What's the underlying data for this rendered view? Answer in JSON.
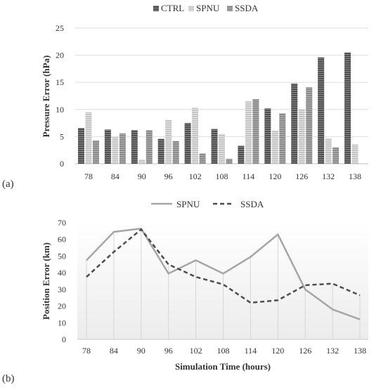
{
  "panel_labels": {
    "a": "(a)",
    "b": "(b)"
  },
  "chart_data": [
    {
      "type": "bar",
      "title": "",
      "xlabel": "",
      "ylabel": "Pressure Error (hPa)",
      "ylim": [
        0,
        25
      ],
      "yticks": [
        0,
        5,
        10,
        15,
        20,
        25
      ],
      "grid": true,
      "legend_position": "top-center",
      "categories": [
        "78",
        "84",
        "90",
        "96",
        "102",
        "108",
        "114",
        "120",
        "126",
        "132",
        "138"
      ],
      "series": [
        {
          "name": "CTRL",
          "color": "#5c5c5c",
          "pattern": "dense-stripes",
          "values": [
            6.6,
            6.3,
            6.2,
            4.6,
            7.5,
            6.4,
            3.3,
            10.2,
            14.8,
            19.6,
            20.5
          ]
        },
        {
          "name": "SPNU",
          "color": "#bdbdbd",
          "pattern": "light-stripes",
          "values": [
            9.5,
            4.9,
            0.8,
            8.1,
            10.3,
            5.5,
            11.5,
            6.1,
            10.1,
            4.7,
            3.6
          ]
        },
        {
          "name": "SSDA",
          "color": "#8a8a8a",
          "pattern": "medium-stripes",
          "values": [
            4.3,
            5.6,
            6.2,
            4.2,
            1.9,
            0.9,
            11.9,
            9.3,
            14.1,
            3.0,
            null
          ]
        }
      ]
    },
    {
      "type": "line",
      "title": "",
      "xlabel": "Simulation Time (hours)",
      "ylabel": "Position Error (km)",
      "ylim": [
        0,
        70
      ],
      "yticks": [
        0,
        10,
        20,
        30,
        40,
        50,
        60,
        70
      ],
      "grid": true,
      "legend_position": "top-center",
      "x": [
        "78",
        "84",
        "90",
        "96",
        "102",
        "108",
        "114",
        "120",
        "126",
        "132",
        "138"
      ],
      "series": [
        {
          "name": "SPNU",
          "color": "#a6a6a6",
          "dash": "solid",
          "values": [
            47.5,
            64.5,
            66.5,
            39.5,
            47.5,
            39.5,
            49.5,
            63.0,
            30.0,
            18.0,
            12.0
          ]
        },
        {
          "name": "SSDA",
          "color": "#4d4d4d",
          "dash": "dashed",
          "values": [
            37.5,
            52.5,
            66.0,
            45.0,
            37.5,
            33.0,
            22.0,
            23.5,
            32.5,
            33.5,
            26.5
          ]
        }
      ]
    }
  ]
}
